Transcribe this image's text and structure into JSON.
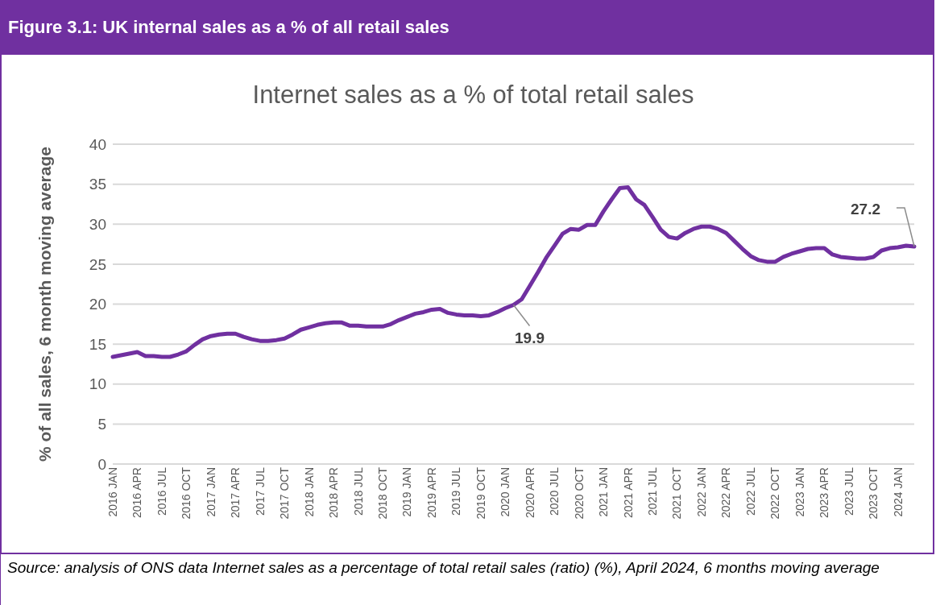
{
  "chart_data": {
    "type": "line",
    "title": "Figure 3.1: UK internal sales as a % of all retail sales",
    "subtitle": "Internet sales as a % of total retail sales",
    "ylabel": "% of all sales, 6 month moving average",
    "categories": [
      "2016 JAN",
      null,
      null,
      "2016 APR",
      null,
      null,
      "2016 JUL",
      null,
      null,
      "2016 OCT",
      null,
      null,
      "2017 JAN",
      null,
      null,
      "2017 APR",
      null,
      null,
      "2017 JUL",
      null,
      null,
      "2017 OCT",
      null,
      null,
      "2018 JAN",
      null,
      null,
      "2018 APR",
      null,
      null,
      "2018 JUL",
      null,
      null,
      "2018 OCT",
      null,
      null,
      "2019 JAN",
      null,
      null,
      "2019 APR",
      null,
      null,
      "2019 JUL",
      null,
      null,
      "2019 OCT",
      null,
      null,
      "2020 JAN",
      null,
      null,
      "2020 APR",
      null,
      null,
      "2020 JUL",
      null,
      null,
      "2020 OCT",
      null,
      null,
      "2021 JAN",
      null,
      null,
      "2021 APR",
      null,
      null,
      "2021 JUL",
      null,
      null,
      "2021 OCT",
      null,
      null,
      "2022 JAN",
      null,
      null,
      "2022 APR",
      null,
      null,
      "2022 JUL",
      null,
      null,
      "2022 OCT",
      null,
      null,
      "2023 JAN",
      null,
      null,
      "2023 APR",
      null,
      null,
      "2023 JUL",
      null,
      null,
      "2023 OCT",
      null,
      null,
      "2024 JAN",
      null,
      null
    ],
    "values": [
      13.4,
      13.6,
      13.8,
      14.0,
      13.5,
      13.5,
      13.4,
      13.4,
      13.7,
      14.1,
      14.9,
      15.6,
      16.0,
      16.2,
      16.3,
      16.3,
      15.9,
      15.6,
      15.4,
      15.4,
      15.5,
      15.7,
      16.2,
      16.8,
      17.1,
      17.4,
      17.6,
      17.7,
      17.7,
      17.3,
      17.3,
      17.2,
      17.2,
      17.2,
      17.5,
      18.0,
      18.4,
      18.8,
      19.0,
      19.3,
      19.4,
      18.9,
      18.7,
      18.6,
      18.6,
      18.5,
      18.6,
      19.0,
      19.5,
      19.9,
      20.6,
      22.3,
      24.0,
      25.8,
      27.3,
      28.8,
      29.4,
      29.3,
      29.9,
      29.9,
      31.6,
      33.1,
      34.5,
      34.6,
      33.1,
      32.4,
      30.9,
      29.3,
      28.4,
      28.2,
      28.9,
      29.4,
      29.7,
      29.7,
      29.4,
      28.9,
      27.9,
      26.9,
      26.0,
      25.5,
      25.3,
      25.3,
      25.9,
      26.3,
      26.6,
      26.9,
      27.0,
      27.0,
      26.2,
      25.9,
      25.8,
      25.7,
      25.7,
      25.9,
      26.7,
      27.0,
      27.1,
      27.3,
      27.2
    ],
    "value_labels": [
      null,
      null,
      null,
      null,
      null,
      null,
      null,
      null,
      null,
      null,
      null,
      null,
      null,
      null,
      null,
      null,
      null,
      null,
      null,
      null,
      null,
      null,
      null,
      null,
      null,
      null,
      null,
      null,
      null,
      null,
      null,
      null,
      null,
      null,
      null,
      null,
      null,
      null,
      null,
      null,
      null,
      null,
      null,
      null,
      null,
      null,
      null,
      null,
      null,
      "19.9",
      null,
      null,
      null,
      null,
      null,
      null,
      null,
      null,
      null,
      null,
      null,
      null,
      null,
      null,
      null,
      null,
      null,
      null,
      null,
      null,
      null,
      null,
      null,
      null,
      null,
      null,
      null,
      null,
      null,
      null,
      null,
      null,
      null,
      null,
      null,
      null,
      null,
      null,
      null,
      null,
      null,
      null,
      null,
      null,
      null,
      null,
      null,
      null,
      "27.2"
    ],
    "color": "#7030a0",
    "ylim": [
      0,
      40
    ],
    "yticks": [
      0,
      5,
      10,
      15,
      20,
      25,
      30,
      35,
      40
    ],
    "grid": "y",
    "marker": "none",
    "line_style": "solid",
    "legend": false,
    "annotations": [
      "Source: analysis of ONS data Internet sales as a percentage of total retail sales (ratio) (%), April 2024, 6 months moving average"
    ]
  }
}
